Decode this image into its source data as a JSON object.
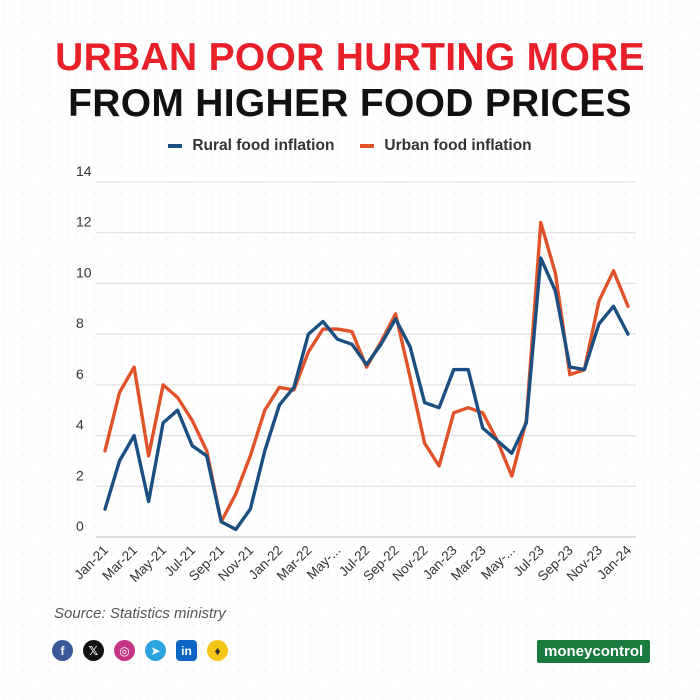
{
  "header": {
    "title_line1": "URBAN POOR HURTING MORE",
    "title_line2": "FROM HIGHER FOOD PRICES"
  },
  "legend": {
    "rural": "Rural food inflation",
    "urban": "Urban food inflation"
  },
  "source": "Source: Statistics ministry",
  "brand": "moneycontrol",
  "social": {
    "fb": "f",
    "x": "𝕏",
    "ig": "◎",
    "tg": "➤",
    "li": "in",
    "ko": "♦"
  },
  "colors": {
    "rural": "#1b4f82",
    "urban": "#e0532a",
    "title_red": "#e8202a"
  },
  "chart_data": {
    "type": "line",
    "title": "URBAN POOR HURTING MORE FROM HIGHER FOOD PRICES",
    "ylim": [
      0,
      14
    ],
    "yticks": [
      0,
      2,
      4,
      6,
      8,
      10,
      12,
      14
    ],
    "x": [
      "Jan-21",
      "Feb-21",
      "Mar-21",
      "Apr-21",
      "May-21",
      "Jun-21",
      "Jul-21",
      "Aug-21",
      "Sep-21",
      "Oct-21",
      "Nov-21",
      "Dec-21",
      "Jan-22",
      "Feb-22",
      "Mar-22",
      "Apr-22",
      "May-22",
      "Jun-22",
      "Jul-22",
      "Aug-22",
      "Sep-22",
      "Oct-22",
      "Nov-22",
      "Dec-22",
      "Jan-23",
      "Feb-23",
      "Mar-23",
      "Apr-23",
      "May-23",
      "Jun-23",
      "Jul-23",
      "Aug-23",
      "Sep-23",
      "Oct-23",
      "Nov-23",
      "Dec-23",
      "Jan-24"
    ],
    "xtick_labels": [
      "Jan-21",
      "Mar-21",
      "May-21",
      "Jul-21",
      "Sep-21",
      "Nov-21",
      "Jan-22",
      "Mar-22",
      "May-...",
      "Jul-22",
      "Sep-22",
      "Nov-22",
      "Jan-23",
      "Mar-23",
      "May-...",
      "Jul-23",
      "Sep-23",
      "Nov-23",
      "Jan-24"
    ],
    "series": [
      {
        "name": "Rural food inflation",
        "values": [
          1.1,
          3.0,
          4.0,
          1.4,
          4.5,
          5.0,
          3.6,
          3.2,
          0.6,
          0.3,
          1.1,
          3.4,
          5.2,
          5.9,
          8.0,
          8.5,
          7.8,
          7.6,
          6.8,
          7.6,
          8.6,
          7.5,
          5.3,
          5.1,
          6.6,
          6.6,
          4.3,
          3.8,
          3.3,
          4.5,
          11.0,
          9.7,
          6.7,
          6.6,
          8.4,
          9.1,
          8.0
        ]
      },
      {
        "name": "Urban food inflation",
        "values": [
          3.4,
          5.7,
          6.7,
          3.2,
          6.0,
          5.5,
          4.6,
          3.4,
          0.6,
          1.7,
          3.2,
          5.0,
          5.9,
          5.8,
          7.3,
          8.2,
          8.2,
          8.1,
          6.7,
          7.7,
          8.8,
          6.3,
          3.7,
          2.8,
          4.9,
          5.1,
          4.9,
          3.8,
          2.4,
          4.6,
          12.4,
          10.4,
          6.4,
          6.6,
          9.3,
          10.5,
          9.1
        ]
      }
    ]
  }
}
